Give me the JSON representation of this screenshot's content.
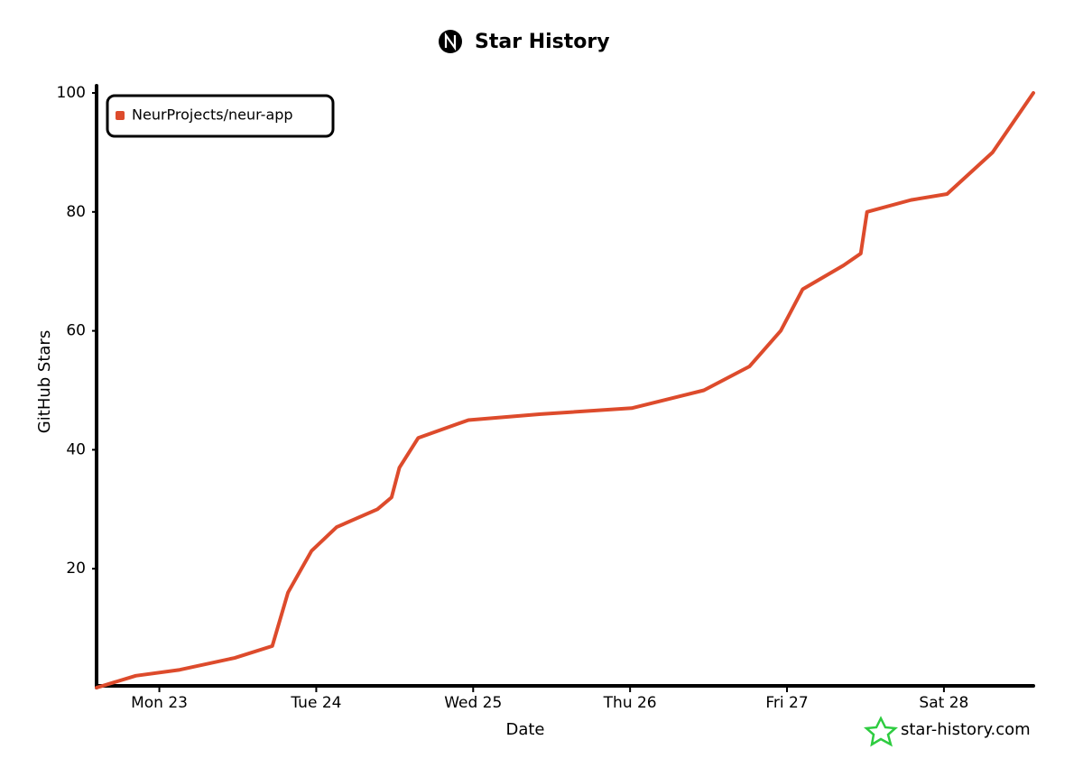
{
  "chart_data": {
    "type": "line",
    "title": "Star History",
    "x_label": "Date",
    "y_label": "GitHub Stars",
    "xlim": [
      22.6,
      28.57
    ],
    "ylim": [
      0,
      100
    ],
    "xticks": [
      {
        "value": 23,
        "label": "Mon 23"
      },
      {
        "value": 24,
        "label": "Tue 24"
      },
      {
        "value": 25,
        "label": "Wed 25"
      },
      {
        "value": 26,
        "label": "Thu 26"
      },
      {
        "value": 27,
        "label": "Fri 27"
      },
      {
        "value": 28,
        "label": "Sat 28"
      }
    ],
    "yticks": [
      20,
      40,
      60,
      80,
      100
    ],
    "legend": "top-left",
    "source": "star-history.com",
    "series": [
      {
        "name": "NeurProjects/neur-app",
        "color": "#dd4b2c",
        "x": [
          22.6,
          22.85,
          23.13,
          23.48,
          23.72,
          23.82,
          23.97,
          24.13,
          24.39,
          24.48,
          24.53,
          24.65,
          24.97,
          25.43,
          26.01,
          26.47,
          26.76,
          26.96,
          27.1,
          27.36,
          27.47,
          27.51,
          27.79,
          28.02,
          28.31,
          28.57
        ],
        "values": [
          0,
          2,
          3,
          5,
          7,
          16,
          23,
          27,
          30,
          32,
          37,
          42,
          45,
          46,
          47,
          50,
          54,
          60,
          67,
          71,
          73,
          80,
          82,
          83,
          90,
          100
        ]
      }
    ]
  }
}
